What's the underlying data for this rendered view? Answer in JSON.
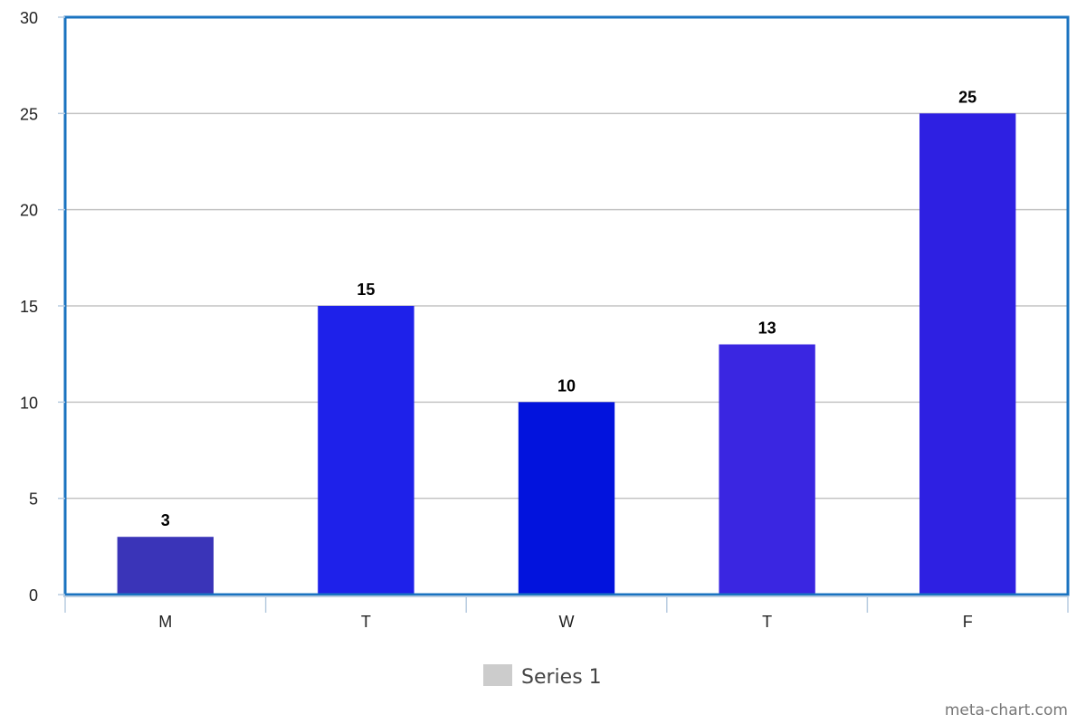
{
  "chart_data": {
    "type": "bar",
    "categories": [
      "M",
      "T",
      "W",
      "T",
      "F"
    ],
    "series": [
      {
        "name": "Series 1",
        "values": [
          3,
          15,
          10,
          13,
          25
        ]
      }
    ],
    "bar_colors": [
      "#3a34b8",
      "#1e21ea",
      "#0213dd",
      "#3a26e1",
      "#2e20e2"
    ],
    "ylim": [
      0,
      30
    ],
    "yticks": [
      0,
      5,
      10,
      15,
      20,
      25,
      30
    ],
    "grid": true,
    "legend": "bottom-center",
    "legend_swatch_color": "#cccccc",
    "frame_color": "#1a73c0"
  },
  "credit": "meta-chart.com"
}
